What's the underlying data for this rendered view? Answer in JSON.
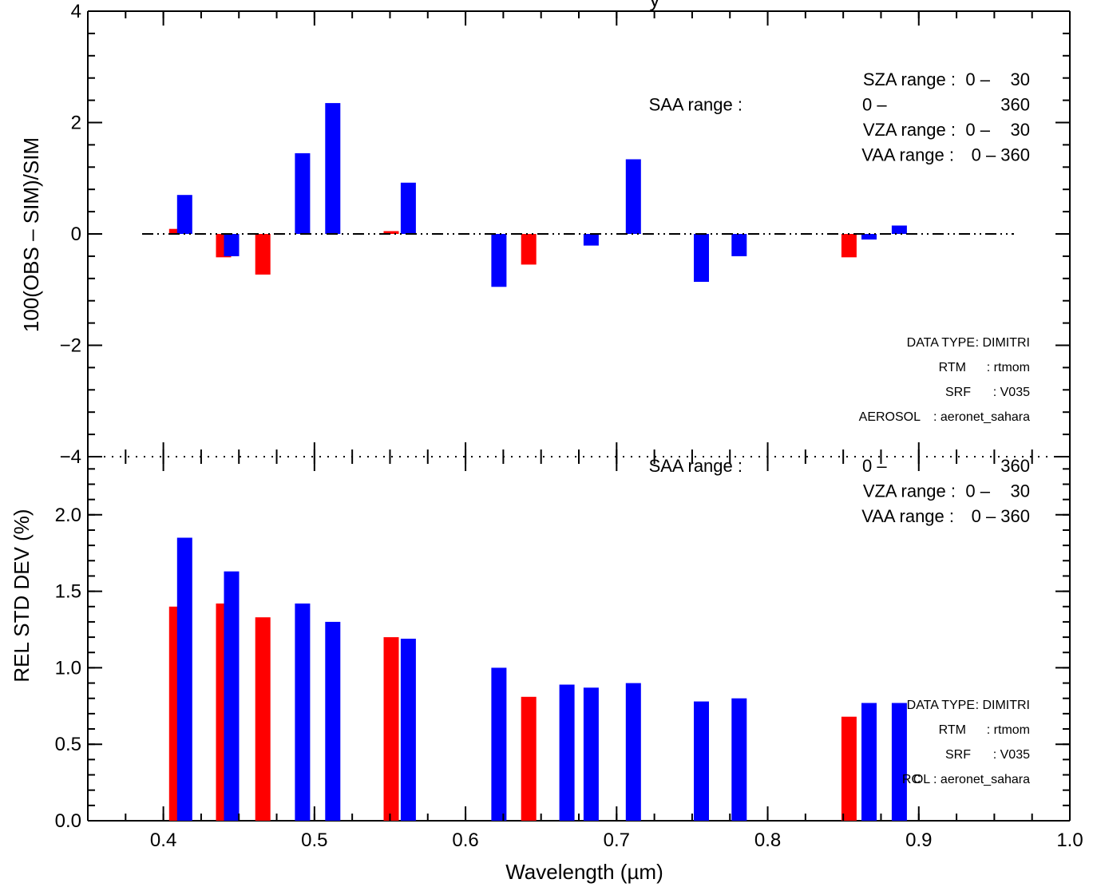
{
  "title_fragment": "y",
  "chart_data": [
    {
      "type": "bar",
      "panel": "top",
      "ylabel": "100(OBS – SIM)/SIM",
      "ylim": [
        -4,
        4
      ],
      "yticks": [
        "4",
        "2",
        "0",
        "−2",
        "−4"
      ],
      "xlim": [
        0.35,
        1.0
      ],
      "zero_line": "dash-dot",
      "series": [
        {
          "color": "#ff0000",
          "points": [
            {
              "x": 0.412,
              "y": 0.09
            },
            {
              "x": 0.443,
              "y": -0.42
            },
            {
              "x": 0.469,
              "y": -0.73
            },
            {
              "x": 0.554,
              "y": 0.05
            },
            {
              "x": 0.645,
              "y": -0.55
            },
            {
              "x": 0.857,
              "y": -0.42
            }
          ]
        },
        {
          "color": "#0000ff",
          "points": [
            {
              "x": 0.412,
              "y": 0.7
            },
            {
              "x": 0.443,
              "y": -0.4
            },
            {
              "x": 0.49,
              "y": 1.45
            },
            {
              "x": 0.51,
              "y": 2.35
            },
            {
              "x": 0.56,
              "y": 0.92
            },
            {
              "x": 0.62,
              "y": -0.95
            },
            {
              "x": 0.681,
              "y": -0.21
            },
            {
              "x": 0.709,
              "y": 1.34
            },
            {
              "x": 0.754,
              "y": -0.86
            },
            {
              "x": 0.779,
              "y": -0.4
            },
            {
              "x": 0.865,
              "y": -0.1
            },
            {
              "x": 0.885,
              "y": 0.15
            }
          ]
        }
      ],
      "annotations_top": [
        {
          "label": "SZA range :",
          "min": "0 –",
          "max": "30"
        },
        {
          "label": "SAA range :",
          "min": "0 –",
          "max": "360"
        },
        {
          "label": "VZA range :",
          "min": "0 –",
          "max": "30"
        },
        {
          "label": "VAA range :",
          "min": "0 – 360",
          "max": ""
        }
      ],
      "annotations_bottom": [
        {
          "label": "DATA TYPE",
          "value": ": DIMITRI"
        },
        {
          "label": "RTM",
          "value": ": rtmom"
        },
        {
          "label": "SRF",
          "value": ": V035"
        },
        {
          "label": "AEROSOL",
          "value": ": aeronet_sahara"
        }
      ]
    },
    {
      "type": "bar",
      "panel": "bottom",
      "ylabel": "REL STD DEV (%)",
      "xlabel": "Wavelength (µm)",
      "ylim": [
        0,
        2.38
      ],
      "yticks": [
        "0.0",
        "0.5",
        "1.0",
        "1.5",
        "2.0"
      ],
      "xlim": [
        0.35,
        1.0
      ],
      "xticks": [
        "0.4",
        "0.5",
        "0.6",
        "0.7",
        "0.8",
        "0.9",
        "1.0"
      ],
      "series": [
        {
          "color": "#ff0000",
          "points": [
            {
              "x": 0.412,
              "y": 1.4
            },
            {
              "x": 0.443,
              "y": 1.42
            },
            {
              "x": 0.469,
              "y": 1.33
            },
            {
              "x": 0.554,
              "y": 1.2
            },
            {
              "x": 0.645,
              "y": 0.81
            },
            {
              "x": 0.857,
              "y": 0.68
            }
          ]
        },
        {
          "color": "#0000ff",
          "points": [
            {
              "x": 0.412,
              "y": 1.85
            },
            {
              "x": 0.443,
              "y": 1.63
            },
            {
              "x": 0.49,
              "y": 1.42
            },
            {
              "x": 0.51,
              "y": 1.3
            },
            {
              "x": 0.56,
              "y": 1.19
            },
            {
              "x": 0.62,
              "y": 1.0
            },
            {
              "x": 0.665,
              "y": 0.89
            },
            {
              "x": 0.681,
              "y": 0.87
            },
            {
              "x": 0.709,
              "y": 0.9
            },
            {
              "x": 0.754,
              "y": 0.78
            },
            {
              "x": 0.779,
              "y": 0.8
            },
            {
              "x": 0.865,
              "y": 0.77
            },
            {
              "x": 0.885,
              "y": 0.77
            }
          ]
        }
      ],
      "annotations_top": [
        {
          "label": "SAA range :",
          "min": "0 –",
          "max": "360"
        },
        {
          "label": "VZA range :",
          "min": "0 –",
          "max": "30"
        },
        {
          "label": "VAA range :",
          "min": "0 – 360",
          "max": ""
        }
      ],
      "annotations_bottom": [
        {
          "label": "DATA TYPE",
          "value": ": DIMITRI"
        },
        {
          "label": "RTM",
          "value": ": rtmom"
        },
        {
          "label": "SRF",
          "value": ": V035"
        },
        {
          "label": "RC",
          "value": "OL : aeronet_sahara"
        }
      ]
    }
  ]
}
